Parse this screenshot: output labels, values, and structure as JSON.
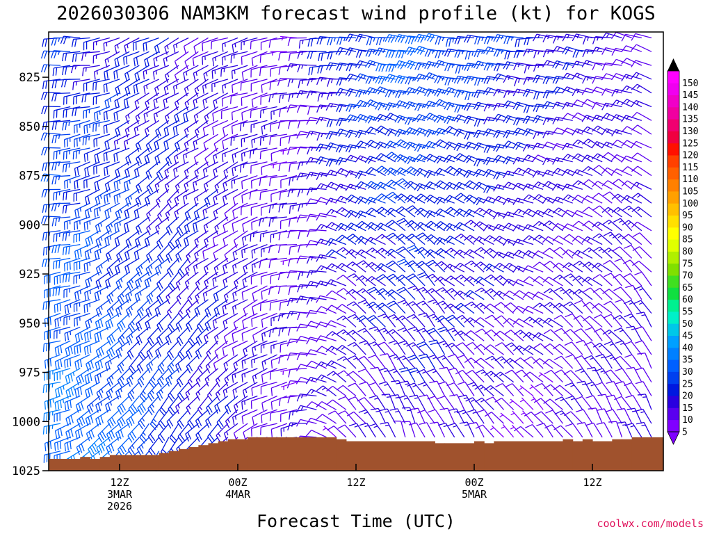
{
  "chart_data": {
    "type": "wind-barb-profile",
    "title": "2026030306 NAM3KM forecast wind profile (kt) for KOGS",
    "xlabel": "Forecast Time (UTC)",
    "ylabel": "",
    "credit": "coolwx.com/models",
    "y_ticks": [
      "825",
      "850",
      "875",
      "900",
      "925",
      "950",
      "975",
      "1000",
      "1025"
    ],
    "y_values": [
      825,
      850,
      875,
      900,
      925,
      950,
      975,
      1000,
      1025
    ],
    "ylim": [
      1025,
      802
    ],
    "x_ticks": [
      {
        "hour": 6,
        "line1": "12Z",
        "line2": "3MAR",
        "line3": "2026"
      },
      {
        "hour": 18,
        "line1": "00Z",
        "line2": "4MAR",
        "line3": ""
      },
      {
        "hour": 30,
        "line1": "12Z",
        "line2": "",
        "line3": ""
      },
      {
        "hour": 42,
        "line1": "00Z",
        "line2": "5MAR",
        "line3": ""
      },
      {
        "hour": 54,
        "line1": "12Z",
        "line2": "",
        "line3": ""
      }
    ],
    "xlim": [
      0,
      60
    ],
    "colorbar": {
      "ticks": [
        5,
        10,
        15,
        20,
        25,
        30,
        35,
        40,
        45,
        50,
        55,
        60,
        65,
        70,
        75,
        80,
        85,
        90,
        95,
        100,
        105,
        110,
        115,
        120,
        125,
        130,
        135,
        140,
        145,
        150
      ],
      "colors": [
        "#8000ff",
        "#5a00f0",
        "#2a00e0",
        "#0018e0",
        "#0040f0",
        "#0060ff",
        "#0080ff",
        "#00a0ff",
        "#00c8e8",
        "#00f0c8",
        "#00f090",
        "#10e040",
        "#40e020",
        "#80e000",
        "#b0f000",
        "#e0ff00",
        "#ffff00",
        "#ffe000",
        "#ffc000",
        "#ffa000",
        "#ff8000",
        "#ff6000",
        "#ff4000",
        "#ff1000",
        "#f00040",
        "#f00070",
        "#f000a0",
        "#f000c8",
        "#f000f0",
        "#ff00ff"
      ],
      "min": 5,
      "max": 150
    },
    "terrain_color": "#a0522d",
    "terrain_pressure": [
      [
        0,
        1019
      ],
      [
        2,
        1018
      ],
      [
        3,
        1019
      ],
      [
        4,
        1018
      ],
      [
        5,
        1017
      ],
      [
        10,
        1016
      ],
      [
        11,
        1015
      ],
      [
        12,
        1014
      ],
      [
        13,
        1013
      ],
      [
        14,
        1012
      ],
      [
        15,
        1011
      ],
      [
        16,
        1010
      ],
      [
        17,
        1009
      ],
      [
        18,
        1009
      ],
      [
        19,
        1008
      ],
      [
        27,
        1008
      ],
      [
        28,
        1009
      ],
      [
        29,
        1010
      ],
      [
        38,
        1011
      ],
      [
        39,
        1011
      ],
      [
        42,
        1010
      ],
      [
        43,
        1011
      ],
      [
        44,
        1010
      ],
      [
        51,
        1009
      ],
      [
        52,
        1010
      ],
      [
        53,
        1009
      ],
      [
        54,
        1010
      ],
      [
        56,
        1009
      ],
      [
        57,
        1009
      ],
      [
        58,
        1008
      ],
      [
        60,
        1008
      ]
    ],
    "barb_levels": [
      805,
      812,
      819,
      826,
      833,
      840,
      847,
      854,
      861,
      868,
      875,
      882,
      889,
      896,
      903,
      910,
      917,
      924,
      931,
      938,
      945,
      952,
      959,
      966,
      973,
      980,
      987,
      994,
      1001,
      1008,
      1015
    ],
    "wind": {
      "anchor_hours": [
        0,
        6,
        12,
        18,
        24,
        30,
        36,
        42,
        48,
        54,
        60
      ],
      "upper": {
        "dir": [
          275,
          250,
          240,
          250,
          265,
          275,
          280,
          275,
          275,
          280,
          285
        ],
        "speed": [
          20,
          18,
          15,
          12,
          10,
          22,
          30,
          25,
          20,
          15,
          12
        ]
      },
      "lower": {
        "dir": [
          250,
          225,
          215,
          230,
          260,
          325,
          340,
          330,
          315,
          330,
          340
        ],
        "speed": [
          35,
          30,
          22,
          15,
          10,
          10,
          12,
          10,
          8,
          10,
          12
        ]
      }
    }
  }
}
